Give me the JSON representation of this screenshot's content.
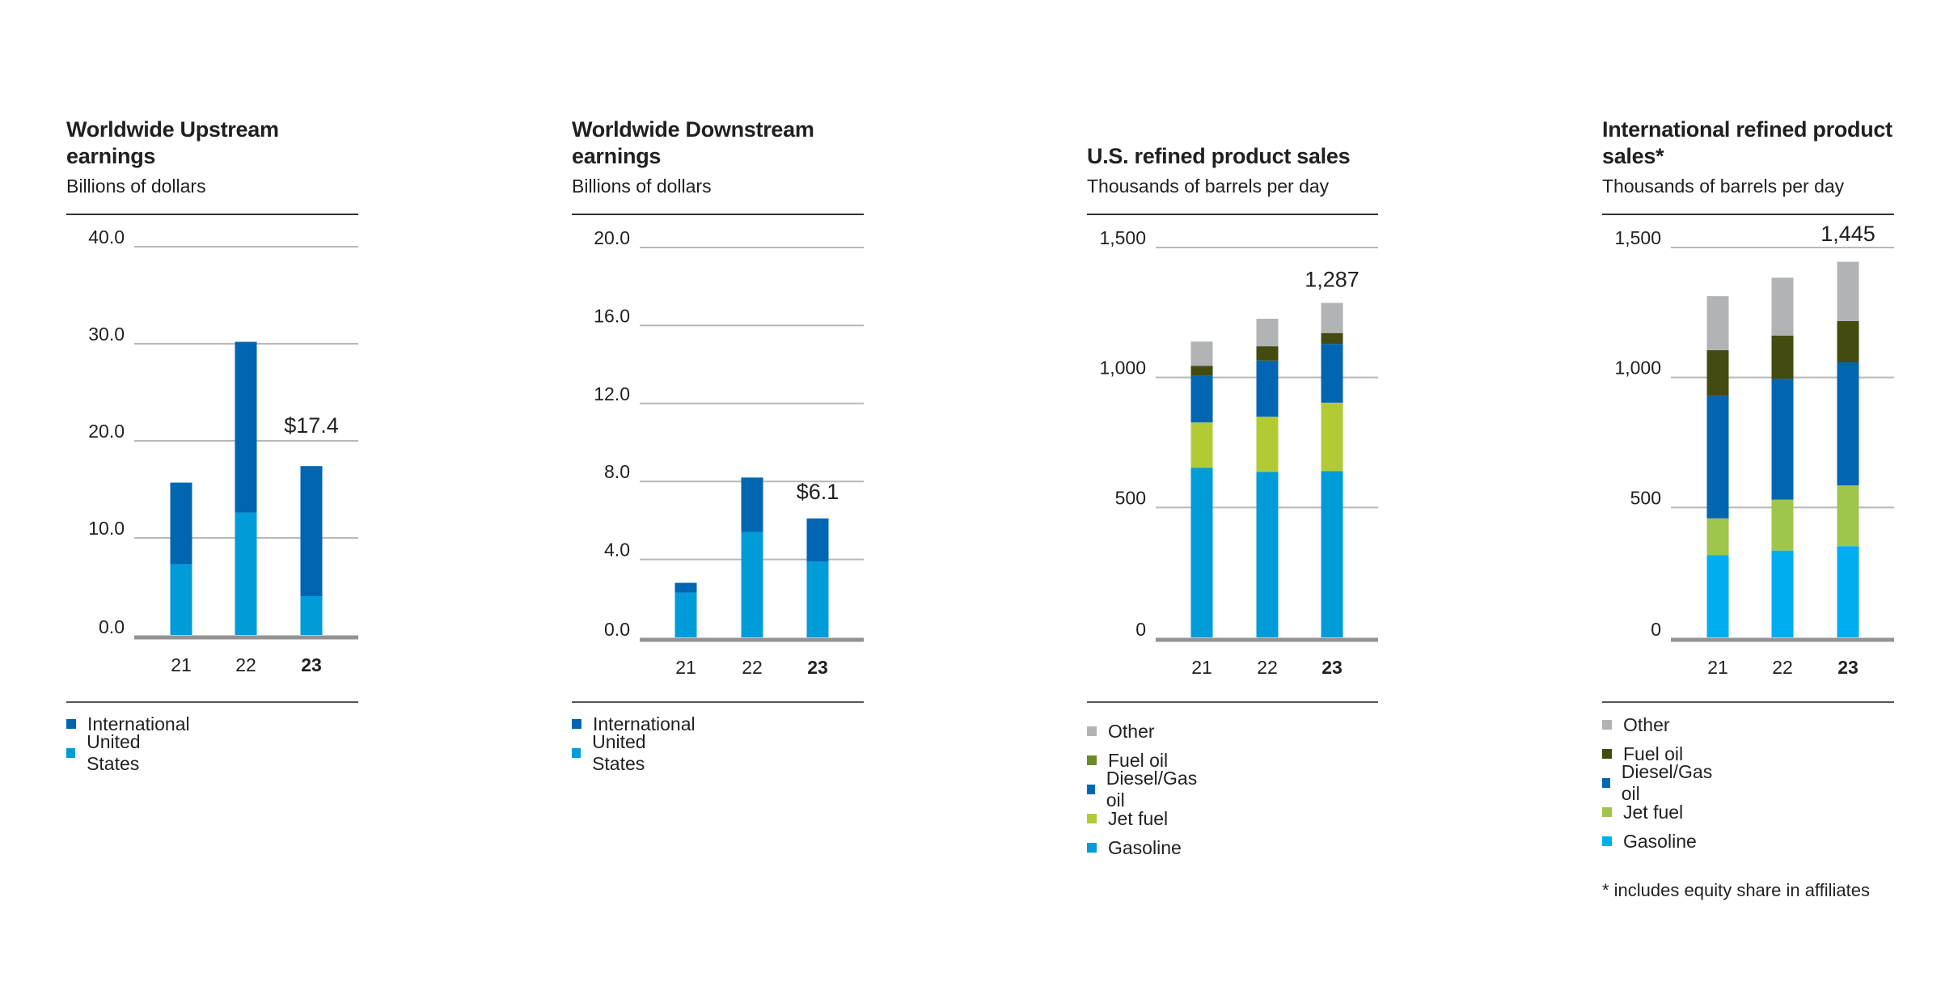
{
  "chart_data": [
    {
      "type": "bar",
      "stacked": true,
      "title": "Worldwide Upstream earnings",
      "subtitle": "Billions of dollars",
      "categories": [
        "21",
        "22",
        "23"
      ],
      "bold_category": "23",
      "yticks": [
        "0.0",
        "10.0",
        "20.0",
        "30.0",
        "40.0"
      ],
      "ylim": [
        0,
        40
      ],
      "grid": true,
      "annotation": "$17.4",
      "legend_position": "bottom",
      "series": [
        {
          "name": "United States",
          "color": "#009bd9",
          "values": [
            7.3,
            12.6,
            4.0
          ]
        },
        {
          "name": "International",
          "color": "#0066b1",
          "values": [
            8.4,
            17.6,
            13.4
          ]
        }
      ]
    },
    {
      "type": "bar",
      "stacked": true,
      "title": "Worldwide Downstream earnings",
      "subtitle": "Billions of dollars",
      "categories": [
        "21",
        "22",
        "23"
      ],
      "bold_category": "23",
      "yticks": [
        "0.0",
        "4.0",
        "8.0",
        "12.0",
        "16.0",
        "20.0"
      ],
      "ylim": [
        0,
        20
      ],
      "grid": true,
      "annotation": "$6.1",
      "legend_position": "bottom",
      "series": [
        {
          "name": "United States",
          "color": "#009bd9",
          "values": [
            2.3,
            5.4,
            3.9
          ]
        },
        {
          "name": "International",
          "color": "#0066b1",
          "values": [
            0.5,
            2.8,
            2.2
          ]
        }
      ]
    },
    {
      "type": "bar",
      "stacked": true,
      "title": "U.S. refined product sales",
      "subtitle": "Thousands of barrels per day",
      "categories": [
        "21",
        "22",
        "23"
      ],
      "bold_category": "23",
      "yticks": [
        "0",
        "500",
        "1,000",
        "1,500"
      ],
      "ylim": [
        0,
        1500
      ],
      "grid": true,
      "annotation": "1,287",
      "legend_position": "bottom",
      "series": [
        {
          "name": "Gasoline",
          "color": "#009bd9",
          "values": [
            653,
            637,
            640
          ]
        },
        {
          "name": "Jet fuel",
          "color": "#b2cb35",
          "values": [
            174,
            212,
            263
          ]
        },
        {
          "name": "Diesel/Gas oil",
          "color": "#0066b1",
          "values": [
            179,
            216,
            226
          ]
        },
        {
          "name": "Fuel oil",
          "color": "#434b10",
          "legend_color": "#6a8a2a",
          "values": [
            39,
            55,
            42
          ]
        },
        {
          "name": "Other",
          "color": "#b1b3b5",
          "values": [
            93,
            106,
            116
          ]
        }
      ]
    },
    {
      "type": "bar",
      "stacked": true,
      "title": "International refined product sales*",
      "subtitle": "Thousands of barrels per day",
      "categories": [
        "21",
        "22",
        "23"
      ],
      "bold_category": "23",
      "yticks": [
        "0",
        "500",
        "1,000",
        "1,500"
      ],
      "ylim": [
        0,
        1500
      ],
      "grid": true,
      "annotation": "1,445",
      "legend_position": "bottom",
      "footnote": "* includes equity share in affiliates",
      "series": [
        {
          "name": "Gasoline",
          "color": "#00aeef",
          "values": [
            316,
            334,
            351
          ]
        },
        {
          "name": "Jet fuel",
          "color": "#a0c54c",
          "values": [
            142,
            196,
            234
          ]
        },
        {
          "name": "Diesel/Gas oil",
          "color": "#0066b1",
          "values": [
            470,
            464,
            473
          ]
        },
        {
          "name": "Fuel oil",
          "color": "#434b10",
          "values": [
            177,
            167,
            159
          ]
        },
        {
          "name": "Other",
          "color": "#b1b3b5",
          "values": [
            208,
            223,
            228
          ]
        }
      ]
    }
  ]
}
